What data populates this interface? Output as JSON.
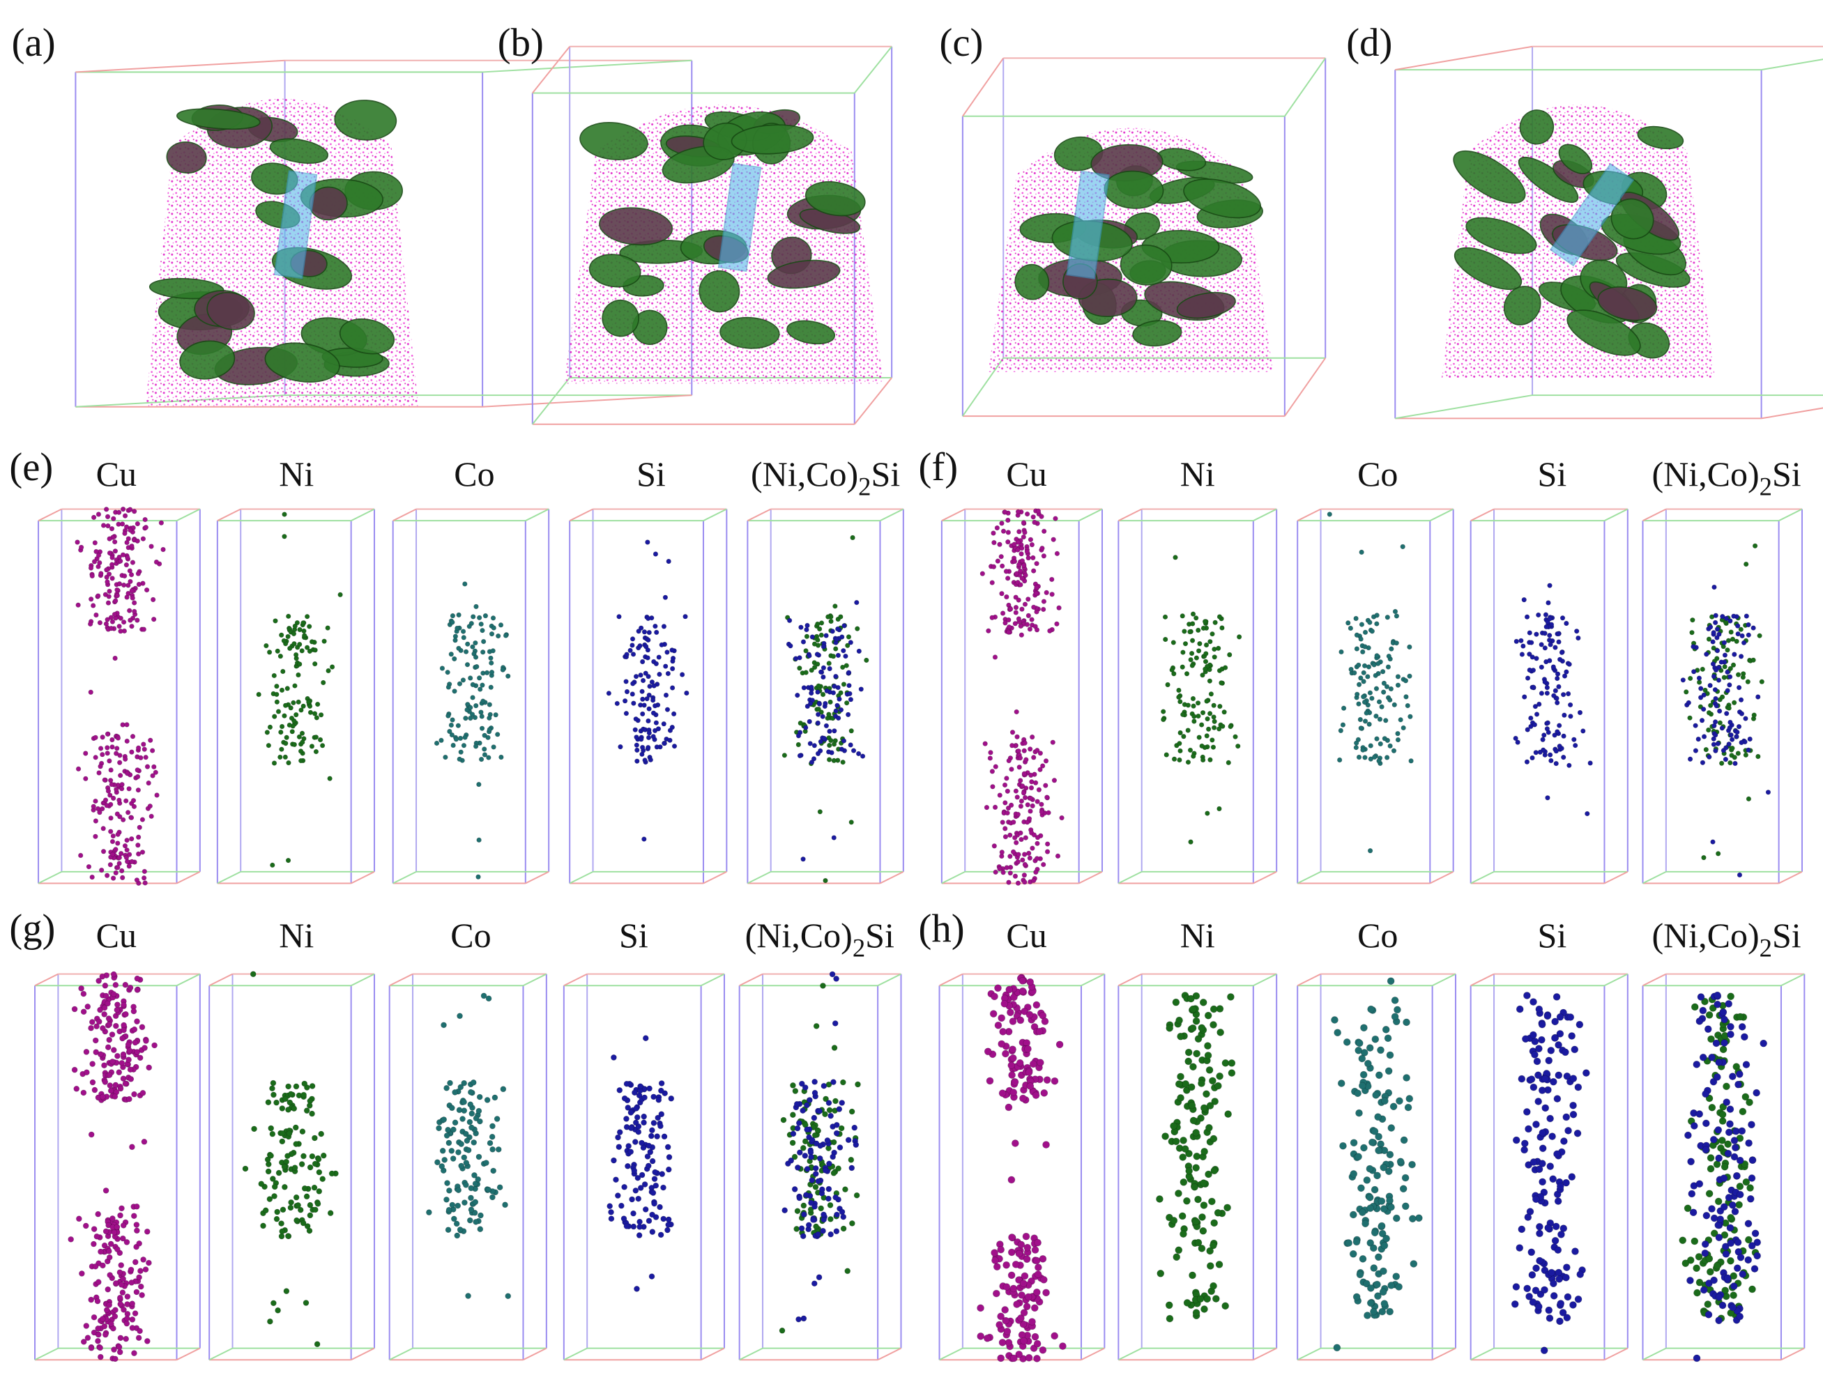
{
  "panels": [
    {
      "label": "(a)"
    },
    {
      "label": "(b)"
    },
    {
      "label": "(c)"
    },
    {
      "label": "(d)"
    }
  ],
  "element_panels": [
    {
      "label": "(e)",
      "elements": [
        "Cu",
        "Ni",
        "Co",
        "Si",
        {
          "main": "(Ni,Co)",
          "sub": "2",
          "tail": "Si"
        }
      ]
    },
    {
      "label": "(f)",
      "elements": [
        "Cu",
        "Ni",
        "Co",
        "Si",
        {
          "main": "(Ni,Co)",
          "sub": "2",
          "tail": "Si"
        }
      ]
    },
    {
      "label": "(g)",
      "elements": [
        "Cu",
        "Ni",
        "Co",
        "Si",
        {
          "main": "(Ni,Co)",
          "sub": "2",
          "tail": "Si"
        }
      ]
    },
    {
      "label": "(h)",
      "elements": [
        "Cu",
        "Ni",
        "Co",
        "Si",
        {
          "main": "(Ni,Co)",
          "sub": "2",
          "tail": "Si"
        }
      ]
    }
  ]
}
